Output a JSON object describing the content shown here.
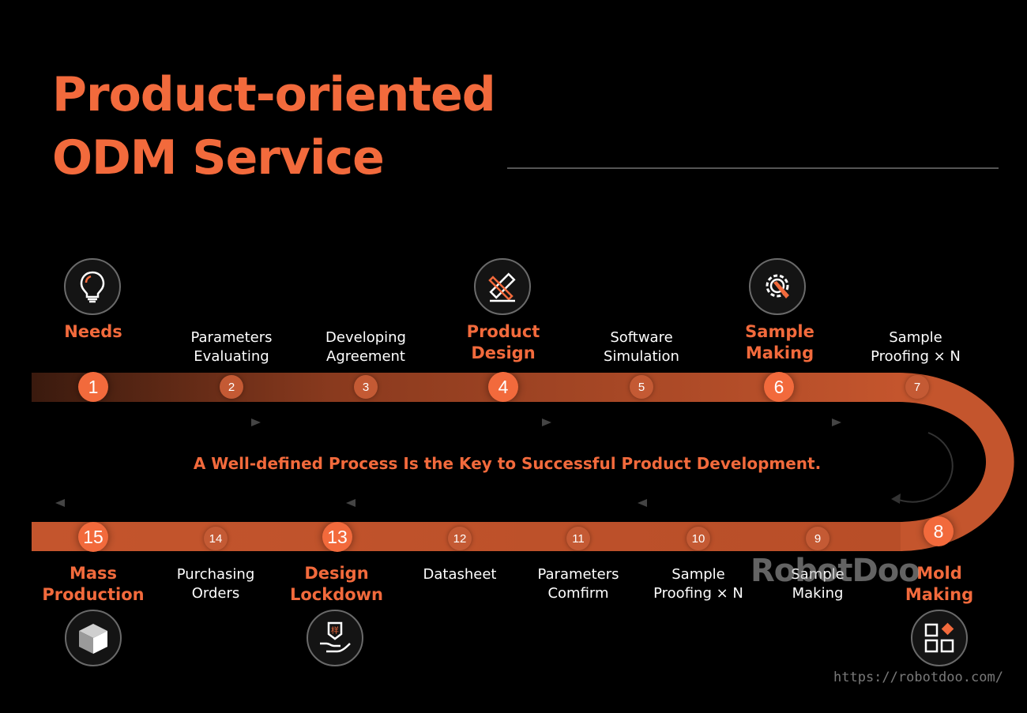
{
  "title": {
    "line1": "Product-oriented",
    "line2": "ODM Service"
  },
  "tagline": "A Well-defined Process Is the Key to Successful Product Development.",
  "colors": {
    "accent": "#f26a3c",
    "track": "#c4552d",
    "background": "#000000"
  },
  "steps": [
    {
      "num": "1",
      "label1": "Needs",
      "label2": ""
    },
    {
      "num": "2",
      "label1": "Parameters",
      "label2": "Evaluating"
    },
    {
      "num": "3",
      "label1": "Developing",
      "label2": "Agreement"
    },
    {
      "num": "4",
      "label1": "Product",
      "label2": "Design"
    },
    {
      "num": "5",
      "label1": "Software",
      "label2": "Simulation"
    },
    {
      "num": "6",
      "label1": "Sample",
      "label2": "Making"
    },
    {
      "num": "7",
      "label1": "Sample",
      "label2": "Proofing × N"
    },
    {
      "num": "8",
      "label1": "Mold",
      "label2": "Making"
    },
    {
      "num": "9",
      "label1": "Sample",
      "label2": "Making"
    },
    {
      "num": "10",
      "label1": "Sample",
      "label2": "Proofing × N"
    },
    {
      "num": "11",
      "label1": "Parameters",
      "label2": "Comfirm"
    },
    {
      "num": "12",
      "label1": "Datasheet",
      "label2": ""
    },
    {
      "num": "13",
      "label1": "Design",
      "label2": "Lockdown"
    },
    {
      "num": "14",
      "label1": "Purchasing",
      "label2": "Orders"
    },
    {
      "num": "15",
      "label1": "Mass",
      "label2": "Production"
    }
  ],
  "icons": {
    "needs": "lightbulb-icon",
    "product_design": "pencil-ruler-icon",
    "sample_making": "gear-wrench-icon",
    "mold_making": "grid-blocks-icon",
    "design_lockdown": "hand-stamp-icon",
    "mass_production": "cube-icon"
  },
  "watermark": {
    "brand": "RobotDoo",
    "url": "https://robotdoo.com/"
  }
}
